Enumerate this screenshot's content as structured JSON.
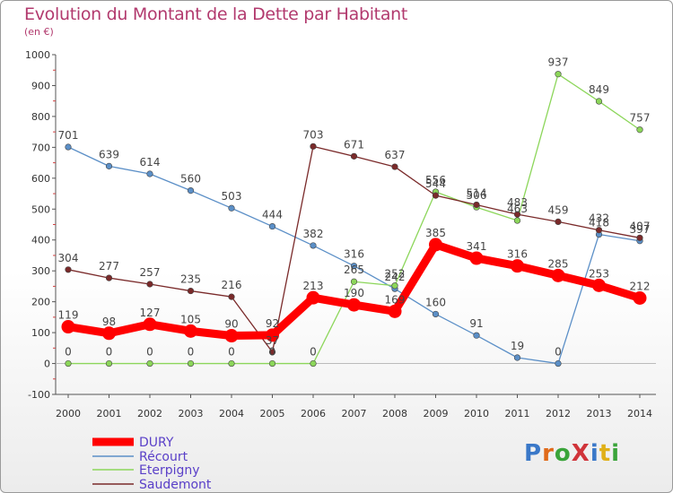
{
  "title": "Evolution du Montant de la Dette par Habitant",
  "subtitle": "(en €)",
  "logo_text": "ProXiti",
  "chart_data": {
    "type": "line",
    "title": "Evolution du Montant de la Dette par Habitant",
    "ylabel": "(en €)",
    "x": [
      "2000",
      "2001",
      "2002",
      "2003",
      "2004",
      "2005",
      "2006",
      "2007",
      "2008",
      "2009",
      "2010",
      "2011",
      "2012",
      "2013",
      "2014"
    ],
    "ylim": [
      -100,
      1000
    ],
    "yticks": [
      -100,
      0,
      100,
      200,
      300,
      400,
      500,
      600,
      700,
      800,
      900,
      1000
    ],
    "ytick_labels": [
      "-100",
      "0",
      "100",
      "200",
      "300",
      "400",
      "500",
      "600",
      "700",
      "800",
      "900",
      "1000"
    ],
    "grid": false,
    "legend_position": "bottom-left",
    "series": [
      {
        "name": "DURY",
        "color": "#ff0000",
        "values": [
          119,
          98,
          127,
          105,
          90,
          92,
          213,
          190,
          169,
          385,
          341,
          316,
          285,
          253,
          212
        ]
      },
      {
        "name": "Récourt",
        "color": "#5b8fc7",
        "values": [
          701,
          639,
          614,
          560,
          503,
          444,
          382,
          316,
          242,
          160,
          91,
          19,
          0,
          418,
          397
        ]
      },
      {
        "name": "Eterpigny",
        "color": "#8cd65a",
        "values": [
          0,
          0,
          0,
          0,
          0,
          0,
          0,
          265,
          252,
          556,
          506,
          463,
          937,
          849,
          757
        ]
      },
      {
        "name": "Saudemont",
        "color": "#7a2a2a",
        "values": [
          304,
          277,
          257,
          235,
          216,
          37,
          703,
          671,
          637,
          544,
          514,
          483,
          459,
          432,
          407
        ]
      }
    ]
  }
}
